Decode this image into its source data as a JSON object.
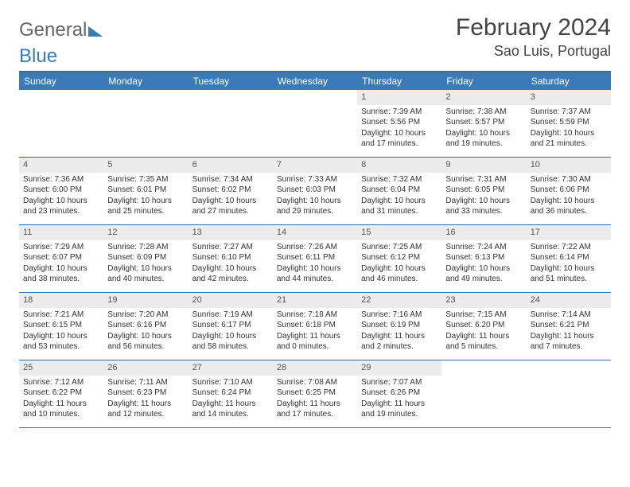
{
  "brand": {
    "part1": "General",
    "part2": "Blue"
  },
  "title": "February 2024",
  "location": "Sao Luis, Portugal",
  "colors": {
    "header_bar": "#3a7ab8",
    "row_divider": "#2f6fa8",
    "daynum_bg": "#ececec",
    "text": "#333333",
    "logo_blue": "#3a7ab8",
    "logo_grey": "#666666",
    "background": "#ffffff"
  },
  "typography": {
    "title_fontsize": 30,
    "location_fontsize": 18,
    "dow_fontsize": 12,
    "cell_fontsize": 10
  },
  "days_of_week": [
    "Sunday",
    "Monday",
    "Tuesday",
    "Wednesday",
    "Thursday",
    "Friday",
    "Saturday"
  ],
  "weeks": [
    [
      null,
      null,
      null,
      null,
      {
        "n": "1",
        "sunrise": "Sunrise: 7:39 AM",
        "sunset": "Sunset: 5:56 PM",
        "daylight": "Daylight: 10 hours and 17 minutes."
      },
      {
        "n": "2",
        "sunrise": "Sunrise: 7:38 AM",
        "sunset": "Sunset: 5:57 PM",
        "daylight": "Daylight: 10 hours and 19 minutes."
      },
      {
        "n": "3",
        "sunrise": "Sunrise: 7:37 AM",
        "sunset": "Sunset: 5:59 PM",
        "daylight": "Daylight: 10 hours and 21 minutes."
      }
    ],
    [
      {
        "n": "4",
        "sunrise": "Sunrise: 7:36 AM",
        "sunset": "Sunset: 6:00 PM",
        "daylight": "Daylight: 10 hours and 23 minutes."
      },
      {
        "n": "5",
        "sunrise": "Sunrise: 7:35 AM",
        "sunset": "Sunset: 6:01 PM",
        "daylight": "Daylight: 10 hours and 25 minutes."
      },
      {
        "n": "6",
        "sunrise": "Sunrise: 7:34 AM",
        "sunset": "Sunset: 6:02 PM",
        "daylight": "Daylight: 10 hours and 27 minutes."
      },
      {
        "n": "7",
        "sunrise": "Sunrise: 7:33 AM",
        "sunset": "Sunset: 6:03 PM",
        "daylight": "Daylight: 10 hours and 29 minutes."
      },
      {
        "n": "8",
        "sunrise": "Sunrise: 7:32 AM",
        "sunset": "Sunset: 6:04 PM",
        "daylight": "Daylight: 10 hours and 31 minutes."
      },
      {
        "n": "9",
        "sunrise": "Sunrise: 7:31 AM",
        "sunset": "Sunset: 6:05 PM",
        "daylight": "Daylight: 10 hours and 33 minutes."
      },
      {
        "n": "10",
        "sunrise": "Sunrise: 7:30 AM",
        "sunset": "Sunset: 6:06 PM",
        "daylight": "Daylight: 10 hours and 36 minutes."
      }
    ],
    [
      {
        "n": "11",
        "sunrise": "Sunrise: 7:29 AM",
        "sunset": "Sunset: 6:07 PM",
        "daylight": "Daylight: 10 hours and 38 minutes."
      },
      {
        "n": "12",
        "sunrise": "Sunrise: 7:28 AM",
        "sunset": "Sunset: 6:09 PM",
        "daylight": "Daylight: 10 hours and 40 minutes."
      },
      {
        "n": "13",
        "sunrise": "Sunrise: 7:27 AM",
        "sunset": "Sunset: 6:10 PM",
        "daylight": "Daylight: 10 hours and 42 minutes."
      },
      {
        "n": "14",
        "sunrise": "Sunrise: 7:26 AM",
        "sunset": "Sunset: 6:11 PM",
        "daylight": "Daylight: 10 hours and 44 minutes."
      },
      {
        "n": "15",
        "sunrise": "Sunrise: 7:25 AM",
        "sunset": "Sunset: 6:12 PM",
        "daylight": "Daylight: 10 hours and 46 minutes."
      },
      {
        "n": "16",
        "sunrise": "Sunrise: 7:24 AM",
        "sunset": "Sunset: 6:13 PM",
        "daylight": "Daylight: 10 hours and 49 minutes."
      },
      {
        "n": "17",
        "sunrise": "Sunrise: 7:22 AM",
        "sunset": "Sunset: 6:14 PM",
        "daylight": "Daylight: 10 hours and 51 minutes."
      }
    ],
    [
      {
        "n": "18",
        "sunrise": "Sunrise: 7:21 AM",
        "sunset": "Sunset: 6:15 PM",
        "daylight": "Daylight: 10 hours and 53 minutes."
      },
      {
        "n": "19",
        "sunrise": "Sunrise: 7:20 AM",
        "sunset": "Sunset: 6:16 PM",
        "daylight": "Daylight: 10 hours and 56 minutes."
      },
      {
        "n": "20",
        "sunrise": "Sunrise: 7:19 AM",
        "sunset": "Sunset: 6:17 PM",
        "daylight": "Daylight: 10 hours and 58 minutes."
      },
      {
        "n": "21",
        "sunrise": "Sunrise: 7:18 AM",
        "sunset": "Sunset: 6:18 PM",
        "daylight": "Daylight: 11 hours and 0 minutes."
      },
      {
        "n": "22",
        "sunrise": "Sunrise: 7:16 AM",
        "sunset": "Sunset: 6:19 PM",
        "daylight": "Daylight: 11 hours and 2 minutes."
      },
      {
        "n": "23",
        "sunrise": "Sunrise: 7:15 AM",
        "sunset": "Sunset: 6:20 PM",
        "daylight": "Daylight: 11 hours and 5 minutes."
      },
      {
        "n": "24",
        "sunrise": "Sunrise: 7:14 AM",
        "sunset": "Sunset: 6:21 PM",
        "daylight": "Daylight: 11 hours and 7 minutes."
      }
    ],
    [
      {
        "n": "25",
        "sunrise": "Sunrise: 7:12 AM",
        "sunset": "Sunset: 6:22 PM",
        "daylight": "Daylight: 11 hours and 10 minutes."
      },
      {
        "n": "26",
        "sunrise": "Sunrise: 7:11 AM",
        "sunset": "Sunset: 6:23 PM",
        "daylight": "Daylight: 11 hours and 12 minutes."
      },
      {
        "n": "27",
        "sunrise": "Sunrise: 7:10 AM",
        "sunset": "Sunset: 6:24 PM",
        "daylight": "Daylight: 11 hours and 14 minutes."
      },
      {
        "n": "28",
        "sunrise": "Sunrise: 7:08 AM",
        "sunset": "Sunset: 6:25 PM",
        "daylight": "Daylight: 11 hours and 17 minutes."
      },
      {
        "n": "29",
        "sunrise": "Sunrise: 7:07 AM",
        "sunset": "Sunset: 6:26 PM",
        "daylight": "Daylight: 11 hours and 19 minutes."
      },
      null,
      null
    ]
  ]
}
